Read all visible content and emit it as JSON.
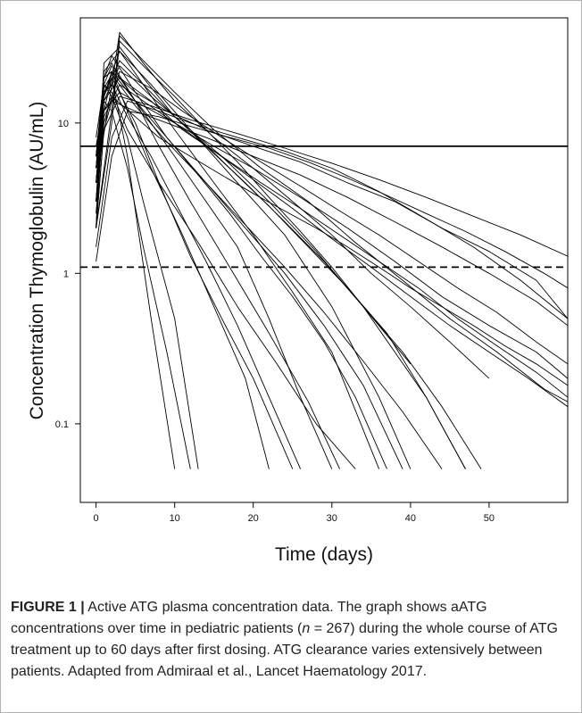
{
  "chart_data": {
    "type": "line",
    "xlabel": "Time (days)",
    "ylabel": "Concentration Thymoglobulin (AU/mL)",
    "xlim": [
      -2,
      60
    ],
    "ylim": [
      0.03,
      50
    ],
    "yscale": "log",
    "x_ticks": [
      0,
      10,
      20,
      30,
      40,
      50
    ],
    "x_tick_labels": [
      "0",
      "10",
      "20",
      "30",
      "40",
      "50"
    ],
    "y_ticks": [
      0.1,
      1,
      10
    ],
    "y_tick_labels": [
      "0.1",
      "1",
      "10"
    ],
    "grid": false,
    "legend": "none",
    "n_patients": 267,
    "reference_lines": [
      {
        "value": 7,
        "style": "solid"
      },
      {
        "value": 1.1,
        "style": "dashed"
      }
    ],
    "lower_limit_value": 0.05,
    "series": [
      {
        "x": [
          0,
          1,
          2,
          5,
          10,
          14,
          18,
          22,
          26,
          30
        ],
        "y": [
          3,
          20,
          25,
          14,
          6,
          3,
          1.5,
          0.5,
          0.15,
          0.05
        ]
      },
      {
        "x": [
          0,
          1,
          3,
          7,
          12,
          18,
          24,
          30,
          36,
          40
        ],
        "y": [
          2,
          15,
          30,
          18,
          9,
          4,
          1.8,
          0.6,
          0.15,
          0.05
        ]
      },
      {
        "x": [
          0,
          2,
          3,
          6,
          10,
          15,
          20,
          25,
          30,
          35,
          40,
          45,
          50
        ],
        "y": [
          4,
          18,
          40,
          25,
          14,
          8,
          5,
          3,
          1.8,
          1,
          0.6,
          0.35,
          0.2
        ]
      },
      {
        "x": [
          0,
          1,
          2,
          4,
          7,
          10
        ],
        "y": [
          5,
          12,
          20,
          6,
          0.5,
          0.05
        ]
      },
      {
        "x": [
          0,
          1,
          3,
          6,
          10,
          16,
          22,
          28,
          34,
          40
        ],
        "y": [
          2,
          25,
          32,
          20,
          11,
          6,
          3,
          1.4,
          0.6,
          0.25
        ]
      },
      {
        "x": [
          0,
          1,
          2,
          5,
          9,
          14,
          20,
          26,
          32,
          38,
          44,
          50,
          56,
          60
        ],
        "y": [
          6,
          20,
          22,
          16,
          12,
          9,
          7,
          5.5,
          4,
          3,
          2,
          1.4,
          0.9,
          0.5
        ]
      },
      {
        "x": [
          0,
          1,
          2,
          4,
          6,
          10,
          13
        ],
        "y": [
          8,
          18,
          15,
          8,
          3,
          0.5,
          0.05
        ]
      },
      {
        "x": [
          0,
          1,
          3,
          7,
          12,
          17,
          22,
          27,
          32,
          37,
          42,
          47
        ],
        "y": [
          3,
          14,
          24,
          15,
          9,
          5,
          2.8,
          1.5,
          0.8,
          0.4,
          0.15,
          0.05
        ]
      },
      {
        "x": [
          0,
          2,
          4,
          8,
          12,
          18,
          24,
          30,
          36,
          42,
          48,
          54,
          60
        ],
        "y": [
          1.5,
          8,
          14,
          12,
          10,
          8,
          6.5,
          5,
          3.5,
          2.3,
          1.5,
          0.9,
          0.5
        ]
      },
      {
        "x": [
          0,
          1,
          2,
          5,
          9,
          14,
          19,
          24,
          29,
          34,
          39
        ],
        "y": [
          5,
          20,
          28,
          16,
          8,
          4,
          2,
          1,
          0.45,
          0.18,
          0.05
        ]
      },
      {
        "x": [
          0,
          1,
          3,
          6,
          10,
          15,
          20,
          26,
          32,
          38,
          44,
          50,
          56,
          60
        ],
        "y": [
          3,
          12,
          16,
          13,
          10,
          7,
          5,
          3.2,
          2,
          1.2,
          0.7,
          0.45,
          0.3,
          0.2
        ]
      },
      {
        "x": [
          0,
          1,
          2,
          5,
          8,
          12,
          16,
          20,
          25
        ],
        "y": [
          4,
          16,
          20,
          10,
          4,
          1.3,
          0.5,
          0.2,
          0.05
        ]
      },
      {
        "x": [
          0,
          2,
          3,
          6,
          10,
          15,
          21,
          27,
          33,
          39,
          45,
          51,
          57,
          60
        ],
        "y": [
          2,
          12,
          38,
          26,
          16,
          9,
          5,
          3,
          1.6,
          0.9,
          0.5,
          0.3,
          0.17,
          0.14
        ]
      },
      {
        "x": [
          0,
          1,
          2,
          4,
          8,
          13,
          18,
          23,
          28,
          33
        ],
        "y": [
          6,
          18,
          16,
          9,
          4,
          1.6,
          0.6,
          0.25,
          0.1,
          0.05
        ]
      },
      {
        "x": [
          0,
          1,
          3,
          7,
          11,
          16,
          21,
          26,
          31,
          36,
          41,
          46,
          51,
          56,
          60
        ],
        "y": [
          3,
          10,
          22,
          17,
          12,
          8,
          5.5,
          3.8,
          2.6,
          1.8,
          1.2,
          0.8,
          0.55,
          0.35,
          0.25
        ]
      },
      {
        "x": [
          0,
          1,
          2,
          4,
          6,
          9,
          12
        ],
        "y": [
          7,
          14,
          12,
          5,
          1.5,
          0.3,
          0.05
        ]
      },
      {
        "x": [
          0,
          1,
          3,
          6,
          10,
          14,
          19,
          24,
          29,
          34,
          39,
          44,
          49
        ],
        "y": [
          4,
          15,
          26,
          18,
          11,
          7,
          4,
          2.2,
          1.2,
          0.6,
          0.3,
          0.13,
          0.05
        ]
      },
      {
        "x": [
          0,
          1,
          2,
          5,
          9,
          14,
          20,
          26,
          32,
          38,
          44,
          50,
          56,
          60
        ],
        "y": [
          2,
          9,
          14,
          12,
          10,
          8,
          6,
          4.5,
          3.2,
          2.2,
          1.5,
          1,
          0.65,
          0.45
        ]
      },
      {
        "x": [
          0,
          1,
          3,
          6,
          10,
          15,
          20,
          25,
          30,
          36
        ],
        "y": [
          5,
          22,
          30,
          18,
          9,
          4,
          1.8,
          0.75,
          0.3,
          0.05
        ]
      },
      {
        "x": [
          0,
          2,
          4,
          8,
          12,
          17,
          22,
          27,
          32,
          37,
          42,
          47,
          52,
          57,
          60
        ],
        "y": [
          1.2,
          6,
          12,
          11,
          9.5,
          8,
          6.8,
          5.5,
          4.3,
          3.3,
          2.5,
          1.9,
          1.4,
          1,
          0.8
        ]
      },
      {
        "x": [
          0,
          1,
          2,
          5,
          8,
          12,
          17,
          22,
          27,
          31
        ],
        "y": [
          4,
          18,
          24,
          14,
          7,
          3,
          1.1,
          0.4,
          0.14,
          0.05
        ]
      },
      {
        "x": [
          0,
          1,
          3,
          7,
          11,
          16,
          21,
          26,
          31,
          36,
          41,
          46,
          51,
          56,
          60
        ],
        "y": [
          3,
          14,
          20,
          14,
          9,
          6,
          4,
          2.7,
          1.8,
          1.2,
          0.8,
          0.5,
          0.33,
          0.22,
          0.15
        ]
      },
      {
        "x": [
          0,
          1,
          2,
          4,
          7,
          11,
          15,
          19,
          22
        ],
        "y": [
          6,
          20,
          22,
          12,
          5,
          1.8,
          0.6,
          0.2,
          0.05
        ]
      },
      {
        "x": [
          0,
          1,
          3,
          6,
          10,
          15,
          20,
          25,
          30,
          35,
          40,
          45,
          50,
          55,
          60
        ],
        "y": [
          2.5,
          11,
          18,
          14,
          10,
          6.5,
          4.2,
          2.7,
          1.7,
          1.1,
          0.7,
          0.45,
          0.3,
          0.2,
          0.13
        ]
      },
      {
        "x": [
          0,
          1,
          2,
          5,
          9,
          13,
          17,
          21,
          25,
          29,
          33,
          37
        ],
        "y": [
          4,
          15,
          22,
          14,
          8,
          4.5,
          2.5,
          1.3,
          0.7,
          0.35,
          0.15,
          0.05
        ]
      },
      {
        "x": [
          0,
          2,
          3,
          6,
          10,
          14,
          18,
          22,
          26,
          30,
          34,
          38,
          42,
          47
        ],
        "y": [
          2,
          10,
          35,
          24,
          15,
          9,
          5.5,
          3.2,
          1.9,
          1.1,
          0.6,
          0.3,
          0.15,
          0.05
        ]
      },
      {
        "x": [
          0,
          1,
          2,
          5,
          8,
          12,
          16,
          20,
          24,
          28,
          32,
          36,
          40,
          44,
          48,
          52,
          56,
          60
        ],
        "y": [
          3,
          12,
          15,
          11,
          8,
          6,
          4.5,
          3.4,
          2.6,
          2,
          1.5,
          1.1,
          0.8,
          0.6,
          0.45,
          0.33,
          0.25,
          0.18
        ]
      },
      {
        "x": [
          0,
          1,
          2,
          4,
          7,
          10,
          14,
          18,
          22,
          26
        ],
        "y": [
          5,
          16,
          18,
          11,
          6,
          3,
          1.2,
          0.45,
          0.15,
          0.05
        ]
      },
      {
        "x": [
          0,
          1,
          3,
          7,
          12,
          18,
          24,
          30,
          36,
          42,
          48,
          54,
          60
        ],
        "y": [
          2,
          9,
          15,
          13,
          10.5,
          8.5,
          6.8,
          5.4,
          4.2,
          3.2,
          2.4,
          1.8,
          1.3
        ]
      },
      {
        "x": [
          0,
          1,
          2,
          5,
          9,
          14,
          19,
          24,
          29,
          34,
          39,
          44
        ],
        "y": [
          4,
          17,
          21,
          13,
          7.5,
          4,
          2.1,
          1.1,
          0.55,
          0.26,
          0.12,
          0.05
        ]
      }
    ]
  },
  "caption": {
    "label": "FIGURE 1 |",
    "text_1": " Active ATG plasma concentration data. The graph shows aATG concentrations over time in pediatric patients (",
    "n_symbol": "n",
    "text_2": " = 267) during the whole course of ATG treatment up to 60 days after first dosing. ATG clearance varies extensively between patients. Adapted from Admiraal et al., Lancet Haematology 2017."
  }
}
